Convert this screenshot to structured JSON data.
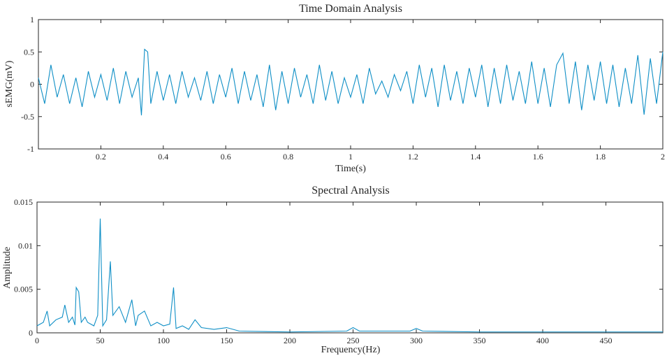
{
  "chart_data": [
    {
      "type": "line",
      "title": "Time Domain Analysis",
      "xlabel": "Time(s)",
      "ylabel": "sEMG(mV)",
      "xlim": [
        0,
        2
      ],
      "ylim": [
        -1,
        1
      ],
      "xticks": [
        0.2,
        0.4,
        0.6,
        0.8,
        1,
        1.2,
        1.4,
        1.6,
        1.8,
        2
      ],
      "xtick_labels": [
        "0.2",
        "0.4",
        "0.6",
        "0.8",
        "1",
        "1.2",
        "1.4",
        "1.6",
        "1.8",
        "2"
      ],
      "yticks": [
        -1,
        -0.5,
        0,
        0.5,
        1
      ],
      "ytick_labels": [
        "-1",
        "-0.5",
        "0",
        "0.5",
        "1"
      ],
      "grid": false,
      "color": "#0f8fc6",
      "series": [
        {
          "x": [
            0,
            0.02,
            0.04,
            0.06,
            0.08,
            0.1,
            0.12,
            0.14,
            0.16,
            0.18,
            0.2,
            0.22,
            0.24,
            0.26,
            0.28,
            0.3,
            0.32,
            0.33,
            0.34,
            0.35,
            0.36,
            0.38,
            0.4,
            0.42,
            0.44,
            0.46,
            0.48,
            0.5,
            0.52,
            0.54,
            0.56,
            0.58,
            0.6,
            0.62,
            0.64,
            0.66,
            0.68,
            0.7,
            0.72,
            0.74,
            0.76,
            0.78,
            0.8,
            0.82,
            0.84,
            0.86,
            0.88,
            0.9,
            0.92,
            0.94,
            0.96,
            0.98,
            1,
            1.02,
            1.04,
            1.06,
            1.08,
            1.1,
            1.12,
            1.14,
            1.16,
            1.18,
            1.2,
            1.22,
            1.24,
            1.26,
            1.28,
            1.3,
            1.32,
            1.34,
            1.36,
            1.38,
            1.4,
            1.42,
            1.44,
            1.46,
            1.48,
            1.5,
            1.52,
            1.54,
            1.56,
            1.58,
            1.6,
            1.62,
            1.64,
            1.66,
            1.68,
            1.7,
            1.72,
            1.74,
            1.76,
            1.78,
            1.8,
            1.82,
            1.84,
            1.86,
            1.88,
            1.9,
            1.92,
            1.94,
            1.96,
            1.98,
            2
          ],
          "y": [
            0.1,
            -0.3,
            0.3,
            -0.2,
            0.15,
            -0.3,
            0.1,
            -0.35,
            0.2,
            -0.2,
            0.15,
            -0.25,
            0.25,
            -0.3,
            0.2,
            -0.2,
            0.1,
            -0.48,
            0.54,
            0.5,
            -0.3,
            0.2,
            -0.25,
            0.15,
            -0.3,
            0.2,
            -0.2,
            0.1,
            -0.25,
            0.2,
            -0.3,
            0.15,
            -0.2,
            0.25,
            -0.3,
            0.2,
            -0.25,
            0.15,
            -0.35,
            0.3,
            -0.4,
            0.2,
            -0.3,
            0.25,
            -0.2,
            0.15,
            -0.3,
            0.3,
            -0.25,
            0.2,
            -0.3,
            0.1,
            -0.2,
            0.15,
            -0.3,
            0.25,
            -0.15,
            0.05,
            -0.2,
            0.15,
            -0.1,
            0.2,
            -0.3,
            0.3,
            -0.2,
            0.25,
            -0.35,
            0.3,
            -0.25,
            0.2,
            -0.3,
            0.25,
            -0.2,
            0.3,
            -0.35,
            0.25,
            -0.3,
            0.3,
            -0.25,
            0.2,
            -0.3,
            0.35,
            -0.3,
            0.25,
            -0.35,
            0.3,
            0.48,
            -0.3,
            0.35,
            -0.4,
            0.3,
            -0.25,
            0.35,
            -0.3,
            0.3,
            -0.35,
            0.25,
            -0.3,
            0.45,
            -0.47,
            0.4,
            -0.3,
            0.5
          ]
        }
      ]
    },
    {
      "type": "line",
      "title": "Spectral Analysis",
      "xlabel": "Frequency(Hz)",
      "ylabel": "Amplitude",
      "xlim": [
        0,
        495
      ],
      "ylim": [
        0,
        0.015
      ],
      "xticks": [
        0,
        50,
        100,
        150,
        200,
        250,
        300,
        350,
        400,
        450
      ],
      "xtick_labels": [
        "0",
        "50",
        "100",
        "150",
        "200",
        "250",
        "300",
        "350",
        "400",
        "450"
      ],
      "yticks": [
        0,
        0.005,
        0.01,
        0.015
      ],
      "ytick_labels": [
        "0",
        "0.005",
        "0.01",
        "0.015"
      ],
      "grid": false,
      "color": "#0f8fc6",
      "series": [
        {
          "x": [
            0,
            5,
            8,
            10,
            15,
            20,
            22,
            25,
            28,
            30,
            31,
            33,
            35,
            38,
            40,
            45,
            48,
            50,
            52,
            55,
            58,
            60,
            65,
            70,
            75,
            78,
            80,
            85,
            90,
            95,
            100,
            105,
            108,
            110,
            115,
            120,
            125,
            130,
            140,
            150,
            160,
            200,
            245,
            250,
            255,
            295,
            300,
            305,
            350,
            400,
            450,
            495
          ],
          "y": [
            0.0008,
            0.0012,
            0.0025,
            0.0008,
            0.0015,
            0.0018,
            0.0032,
            0.0012,
            0.0018,
            0.0009,
            0.0052,
            0.0047,
            0.0012,
            0.0018,
            0.0012,
            0.0008,
            0.002,
            0.0131,
            0.0008,
            0.0015,
            0.0082,
            0.002,
            0.003,
            0.0012,
            0.0038,
            0.0008,
            0.002,
            0.0025,
            0.0008,
            0.0012,
            0.0008,
            0.001,
            0.0052,
            0.0005,
            0.0008,
            0.0004,
            0.0015,
            0.0006,
            0.0004,
            0.0006,
            0.0002,
            0.0001,
            0.0002,
            0.0006,
            0.0002,
            0.0002,
            0.0005,
            0.0002,
            0.0001,
            0.0001,
            0.0001,
            0.0001
          ]
        }
      ]
    }
  ]
}
